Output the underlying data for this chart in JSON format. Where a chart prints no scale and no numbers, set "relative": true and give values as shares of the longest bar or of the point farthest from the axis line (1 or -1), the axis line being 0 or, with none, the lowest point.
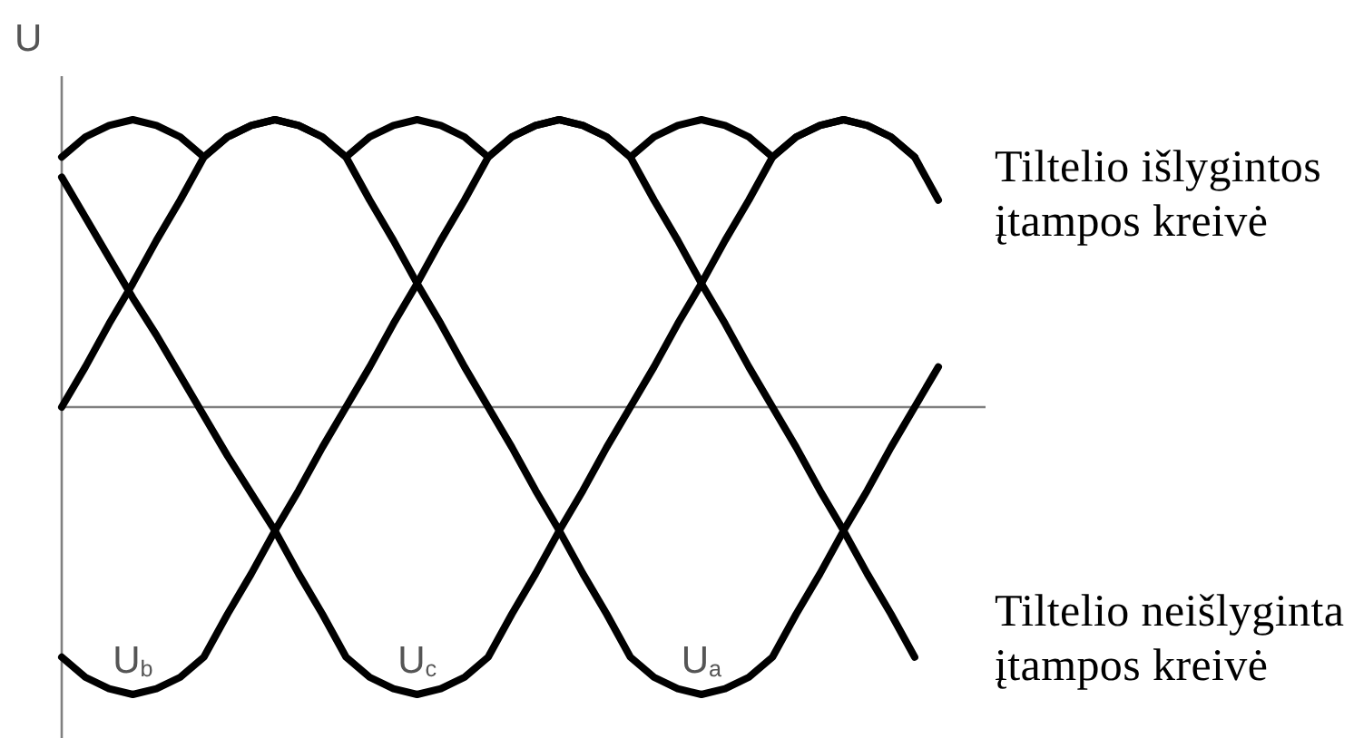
{
  "chart_data": {
    "type": "line",
    "relative": true,
    "ylabel": "U",
    "categories": [
      null,
      null,
      null,
      null,
      null,
      null,
      null,
      null,
      null,
      null,
      null,
      null,
      null,
      null,
      null,
      null,
      null,
      null,
      null,
      null,
      null,
      null,
      null,
      null,
      null,
      null,
      null,
      null,
      null,
      null,
      null,
      null,
      null,
      null,
      null,
      null,
      null,
      null
    ],
    "series": [
      {
        "name": "U$_{a}$",
        "color": "#000000",
        "values": [
          0,
          0.14,
          0.29,
          0.43,
          0.58,
          0.72,
          0.87,
          0.94,
          0.98,
          1,
          0.98,
          0.94,
          0.87,
          0.72,
          0.58,
          0.43,
          0.29,
          0.14,
          0,
          -0.14,
          -0.29,
          -0.43,
          -0.58,
          -0.72,
          -0.87,
          -0.94,
          -0.98,
          -1,
          -0.98,
          -0.94,
          -0.87,
          -0.72,
          -0.58,
          -0.43,
          -0.29,
          -0.14,
          0,
          0.14
        ]
      },
      {
        "name": "U$_{b}$",
        "color": "#000000",
        "values": [
          -0.87,
          -0.94,
          -0.98,
          -1,
          -0.98,
          -0.94,
          -0.87,
          -0.72,
          -0.58,
          -0.43,
          -0.29,
          -0.14,
          0,
          0.14,
          0.29,
          0.43,
          0.58,
          0.72,
          0.87,
          0.94,
          0.98,
          1,
          0.98,
          0.94,
          0.87,
          0.72,
          0.58,
          0.43,
          0.29,
          0.14,
          0,
          -0.14,
          -0.29,
          -0.43,
          -0.58,
          -0.72,
          -0.87,
          null
        ]
      },
      {
        "name": "U$_{c}$",
        "color": "#000000",
        "values": [
          0.8,
          0.66,
          0.52,
          0.38,
          0.25,
          0.11,
          -0.03,
          -0.17,
          -0.3,
          -0.43,
          -0.58,
          -0.72,
          -0.87,
          -0.94,
          -0.98,
          -1,
          -0.98,
          -0.94,
          -0.87,
          -0.72,
          -0.58,
          -0.43,
          -0.29,
          -0.14,
          0,
          0.14,
          0.29,
          0.43,
          0.58,
          0.72,
          0.87,
          0.94,
          0.98,
          1,
          0.98,
          0.94,
          0.87,
          0.72
        ]
      },
      {
        "color": "#000000",
        "values": [
          0.87,
          0.94,
          0.98,
          1,
          0.98,
          0.94,
          0.87,
          0.94,
          0.98,
          1,
          0.98,
          0.94,
          0.87,
          0.94,
          0.98,
          1,
          0.98,
          0.94,
          0.87,
          0.94,
          0.98,
          1,
          0.98,
          0.94,
          0.87,
          0.94,
          0.98,
          1,
          0.98,
          0.94,
          0.87,
          0.94,
          0.98,
          1,
          0.98,
          0.94,
          0.87,
          null
        ]
      }
    ],
    "annotations": [
      "Tiltelio išlygintos\nįtampos kreivė",
      "Tiltelio neišlyginta\nįtampos kreivė"
    ]
  }
}
